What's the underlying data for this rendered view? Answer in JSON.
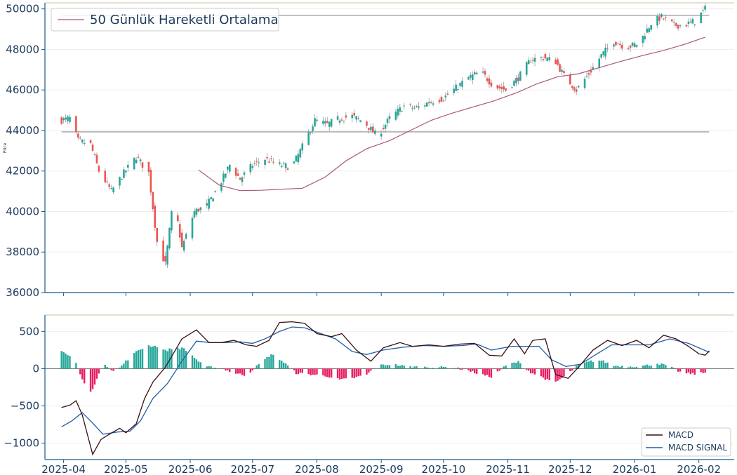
{
  "chart_data": [
    {
      "type": "candlestick",
      "ylabel": "Price",
      "ylim": [
        36000,
        50300
      ],
      "y_ticks": [
        36000,
        38000,
        40000,
        42000,
        44000,
        46000,
        48000,
        50000
      ],
      "x_range": [
        "2025-03-23",
        "2026-02-18"
      ],
      "legend": {
        "position": "top-left",
        "entries": [
          "50 Günlük Hareketli Ortalama"
        ]
      },
      "horizontal_lines": [
        49680,
        43930
      ],
      "colors": {
        "up": "#26a69a",
        "down": "#ef5350",
        "ma": "#a8587a",
        "hline": "#b0b0b0",
        "axis": "#1b5a8c"
      },
      "ohlc_anchors": [
        [
          "2025-03-31",
          44500
        ],
        [
          "2025-04-04",
          44600
        ],
        [
          "2025-04-08",
          43500
        ],
        [
          "2025-04-14",
          43300
        ],
        [
          "2025-04-18",
          42000
        ],
        [
          "2025-04-24",
          41000
        ],
        [
          "2025-04-30",
          41900
        ],
        [
          "2025-05-06",
          42700
        ],
        [
          "2025-05-12",
          41900
        ],
        [
          "2025-05-16",
          38500
        ],
        [
          "2025-05-20",
          37400
        ],
        [
          "2025-05-24",
          40700
        ],
        [
          "2025-05-28",
          38200
        ],
        [
          "2025-06-03",
          40000
        ],
        [
          "2025-06-09",
          40300
        ],
        [
          "2025-06-15",
          41300
        ],
        [
          "2025-06-20",
          42300
        ],
        [
          "2025-06-25",
          41600
        ],
        [
          "2025-07-01",
          42300
        ],
        [
          "2025-07-07",
          42600
        ],
        [
          "2025-07-14",
          42300
        ],
        [
          "2025-07-20",
          42200
        ],
        [
          "2025-07-25",
          43200
        ],
        [
          "2025-07-31",
          44500
        ],
        [
          "2025-08-06",
          44300
        ],
        [
          "2025-08-12",
          44600
        ],
        [
          "2025-08-18",
          44700
        ],
        [
          "2025-08-24",
          44400
        ],
        [
          "2025-08-30",
          43700
        ],
        [
          "2025-09-05",
          44600
        ],
        [
          "2025-09-12",
          45200
        ],
        [
          "2025-09-18",
          45100
        ],
        [
          "2025-09-24",
          45400
        ],
        [
          "2025-10-01",
          45600
        ],
        [
          "2025-10-07",
          46100
        ],
        [
          "2025-10-13",
          46600
        ],
        [
          "2025-10-19",
          46900
        ],
        [
          "2025-10-25",
          46200
        ],
        [
          "2025-10-31",
          46000
        ],
        [
          "2025-11-06",
          46600
        ],
        [
          "2025-11-12",
          47500
        ],
        [
          "2025-11-18",
          47600
        ],
        [
          "2025-11-24",
          47400
        ],
        [
          "2025-11-28",
          46700
        ],
        [
          "2025-12-04",
          46000
        ],
        [
          "2025-12-10",
          46800
        ],
        [
          "2025-12-16",
          47700
        ],
        [
          "2025-12-22",
          48400
        ],
        [
          "2025-12-28",
          48100
        ],
        [
          "2026-01-03",
          48300
        ],
        [
          "2026-01-09",
          49300
        ],
        [
          "2026-01-14",
          49600
        ],
        [
          "2026-01-20",
          49200
        ],
        [
          "2026-01-25",
          49200
        ],
        [
          "2026-01-30",
          49400
        ],
        [
          "2026-02-04",
          50000
        ]
      ],
      "ma50_anchors": [
        [
          "2025-06-05",
          42050
        ],
        [
          "2025-06-15",
          41300
        ],
        [
          "2025-06-25",
          41030
        ],
        [
          "2025-07-05",
          41050
        ],
        [
          "2025-07-15",
          41100
        ],
        [
          "2025-07-25",
          41150
        ],
        [
          "2025-08-05",
          41700
        ],
        [
          "2025-08-15",
          42500
        ],
        [
          "2025-08-25",
          43100
        ],
        [
          "2025-09-05",
          43500
        ],
        [
          "2025-09-15",
          44000
        ],
        [
          "2025-09-25",
          44500
        ],
        [
          "2025-10-05",
          44850
        ],
        [
          "2025-10-15",
          45150
        ],
        [
          "2025-10-25",
          45450
        ],
        [
          "2025-11-05",
          45850
        ],
        [
          "2025-11-15",
          46300
        ],
        [
          "2025-11-25",
          46650
        ],
        [
          "2025-12-05",
          46800
        ],
        [
          "2025-12-15",
          47100
        ],
        [
          "2025-12-25",
          47400
        ],
        [
          "2026-01-05",
          47700
        ],
        [
          "2026-01-15",
          47950
        ],
        [
          "2026-01-25",
          48250
        ],
        [
          "2026-02-04",
          48600
        ]
      ]
    },
    {
      "type": "line",
      "ylim": [
        -1220,
        720
      ],
      "y_ticks": [
        -1000,
        -500,
        0,
        500
      ],
      "x_ticks": [
        "2025-04",
        "2025-05",
        "2025-06",
        "2025-07",
        "2025-08",
        "2025-09",
        "2025-10",
        "2025-11",
        "2025-12",
        "2026-01",
        "2026-02"
      ],
      "legend": {
        "position": "bottom-right"
      },
      "series": [
        {
          "name": "MACD",
          "color": "#3a0f12",
          "points": [
            [
              "2025-03-31",
              -520
            ],
            [
              "2025-04-04",
              -490
            ],
            [
              "2025-04-07",
              -430
            ],
            [
              "2025-04-10",
              -620
            ],
            [
              "2025-04-15",
              -1150
            ],
            [
              "2025-04-19",
              -950
            ],
            [
              "2025-04-23",
              -880
            ],
            [
              "2025-04-28",
              -800
            ],
            [
              "2025-05-01",
              -860
            ],
            [
              "2025-05-06",
              -740
            ],
            [
              "2025-05-10",
              -400
            ],
            [
              "2025-05-14",
              -180
            ],
            [
              "2025-05-20",
              20
            ],
            [
              "2025-05-28",
              400
            ],
            [
              "2025-06-04",
              520
            ],
            [
              "2025-06-10",
              350
            ],
            [
              "2025-06-16",
              350
            ],
            [
              "2025-06-22",
              380
            ],
            [
              "2025-06-28",
              320
            ],
            [
              "2025-07-03",
              300
            ],
            [
              "2025-07-09",
              380
            ],
            [
              "2025-07-14",
              620
            ],
            [
              "2025-07-20",
              630
            ],
            [
              "2025-07-26",
              610
            ],
            [
              "2025-08-01",
              470
            ],
            [
              "2025-08-08",
              430
            ],
            [
              "2025-08-13",
              470
            ],
            [
              "2025-08-20",
              250
            ],
            [
              "2025-08-27",
              100
            ],
            [
              "2025-09-02",
              280
            ],
            [
              "2025-09-10",
              350
            ],
            [
              "2025-09-16",
              300
            ],
            [
              "2025-09-24",
              320
            ],
            [
              "2025-10-01",
              300
            ],
            [
              "2025-10-09",
              330
            ],
            [
              "2025-10-16",
              340
            ],
            [
              "2025-10-23",
              180
            ],
            [
              "2025-10-29",
              170
            ],
            [
              "2025-11-04",
              400
            ],
            [
              "2025-11-09",
              200
            ],
            [
              "2025-11-13",
              380
            ],
            [
              "2025-11-19",
              400
            ],
            [
              "2025-11-24",
              -80
            ],
            [
              "2025-11-30",
              -130
            ],
            [
              "2025-12-05",
              20
            ],
            [
              "2025-12-12",
              250
            ],
            [
              "2025-12-19",
              380
            ],
            [
              "2025-12-26",
              310
            ],
            [
              "2026-01-02",
              380
            ],
            [
              "2026-01-08",
              280
            ],
            [
              "2026-01-15",
              450
            ],
            [
              "2026-01-21",
              400
            ],
            [
              "2026-01-27",
              300
            ],
            [
              "2026-02-01",
              200
            ],
            [
              "2026-02-04",
              180
            ],
            [
              "2026-02-06",
              240
            ]
          ]
        },
        {
          "name": "MACD SIGNAL",
          "color": "#1f5faa",
          "points": [
            [
              "2025-03-31",
              -780
            ],
            [
              "2025-04-05",
              -700
            ],
            [
              "2025-04-10",
              -590
            ],
            [
              "2025-04-15",
              -730
            ],
            [
              "2025-04-20",
              -880
            ],
            [
              "2025-04-27",
              -850
            ],
            [
              "2025-05-03",
              -840
            ],
            [
              "2025-05-08",
              -700
            ],
            [
              "2025-05-14",
              -400
            ],
            [
              "2025-05-21",
              -200
            ],
            [
              "2025-05-28",
              100
            ],
            [
              "2025-06-04",
              370
            ],
            [
              "2025-06-11",
              350
            ],
            [
              "2025-06-18",
              350
            ],
            [
              "2025-06-25",
              360
            ],
            [
              "2025-07-01",
              340
            ],
            [
              "2025-07-07",
              400
            ],
            [
              "2025-07-14",
              500
            ],
            [
              "2025-07-20",
              560
            ],
            [
              "2025-07-26",
              550
            ],
            [
              "2025-08-01",
              490
            ],
            [
              "2025-08-10",
              400
            ],
            [
              "2025-08-18",
              230
            ],
            [
              "2025-08-25",
              190
            ],
            [
              "2025-09-02",
              250
            ],
            [
              "2025-09-12",
              290
            ],
            [
              "2025-09-22",
              310
            ],
            [
              "2025-10-01",
              300
            ],
            [
              "2025-10-10",
              310
            ],
            [
              "2025-10-17",
              330
            ],
            [
              "2025-10-24",
              250
            ],
            [
              "2025-11-03",
              300
            ],
            [
              "2025-11-09",
              300
            ],
            [
              "2025-11-16",
              300
            ],
            [
              "2025-11-22",
              120
            ],
            [
              "2025-11-29",
              30
            ],
            [
              "2025-12-06",
              60
            ],
            [
              "2025-12-14",
              200
            ],
            [
              "2025-12-21",
              320
            ],
            [
              "2025-12-30",
              320
            ],
            [
              "2026-01-08",
              320
            ],
            [
              "2026-01-18",
              400
            ],
            [
              "2026-01-27",
              340
            ],
            [
              "2026-02-06",
              220
            ]
          ]
        },
        {
          "name": "histogram",
          "type": "bar",
          "colors": {
            "positive": "#26a69a",
            "negative": "#e91e63"
          },
          "points": [
            [
              "2025-03-31",
              250
            ],
            [
              "2025-04-03",
              180
            ],
            [
              "2025-04-06",
              150
            ],
            [
              "2025-04-10",
              -150
            ],
            [
              "2025-04-14",
              -320
            ],
            [
              "2025-04-18",
              -80
            ],
            [
              "2025-04-21",
              60
            ],
            [
              "2025-04-26",
              -50
            ],
            [
              "2025-05-01",
              100
            ],
            [
              "2025-05-07",
              250
            ],
            [
              "2025-05-12",
              310
            ],
            [
              "2025-05-16",
              300
            ],
            [
              "2025-05-20",
              240
            ],
            [
              "2025-05-24",
              280
            ],
            [
              "2025-05-29",
              270
            ],
            [
              "2025-06-03",
              150
            ],
            [
              "2025-06-08",
              20
            ],
            [
              "2025-06-15",
              20
            ],
            [
              "2025-06-22",
              -60
            ],
            [
              "2025-06-28",
              -90
            ],
            [
              "2025-07-05",
              80
            ],
            [
              "2025-07-10",
              190
            ],
            [
              "2025-07-15",
              110
            ],
            [
              "2025-07-22",
              -60
            ],
            [
              "2025-07-30",
              -80
            ],
            [
              "2025-08-06",
              -100
            ],
            [
              "2025-08-12",
              -150
            ],
            [
              "2025-08-18",
              -130
            ],
            [
              "2025-08-25",
              -80
            ],
            [
              "2025-08-30",
              40
            ],
            [
              "2025-09-06",
              60
            ],
            [
              "2025-09-13",
              30
            ],
            [
              "2025-09-20",
              20
            ],
            [
              "2025-09-27",
              20
            ],
            [
              "2025-10-04",
              20
            ],
            [
              "2025-10-11",
              -10
            ],
            [
              "2025-10-18",
              -70
            ],
            [
              "2025-10-24",
              -110
            ],
            [
              "2025-11-01",
              60
            ],
            [
              "2025-11-06",
              90
            ],
            [
              "2025-11-12",
              -50
            ],
            [
              "2025-11-18",
              -120
            ],
            [
              "2025-11-23",
              -200
            ],
            [
              "2025-11-29",
              -90
            ],
            [
              "2025-12-05",
              50
            ],
            [
              "2025-12-11",
              100
            ],
            [
              "2025-12-16",
              110
            ],
            [
              "2025-12-22",
              40
            ],
            [
              "2025-12-30",
              30
            ],
            [
              "2026-01-06",
              40
            ],
            [
              "2026-01-12",
              70
            ],
            [
              "2026-01-17",
              40
            ],
            [
              "2026-01-24",
              -60
            ],
            [
              "2026-01-30",
              -70
            ],
            [
              "2026-02-05",
              -50
            ]
          ]
        }
      ]
    }
  ]
}
